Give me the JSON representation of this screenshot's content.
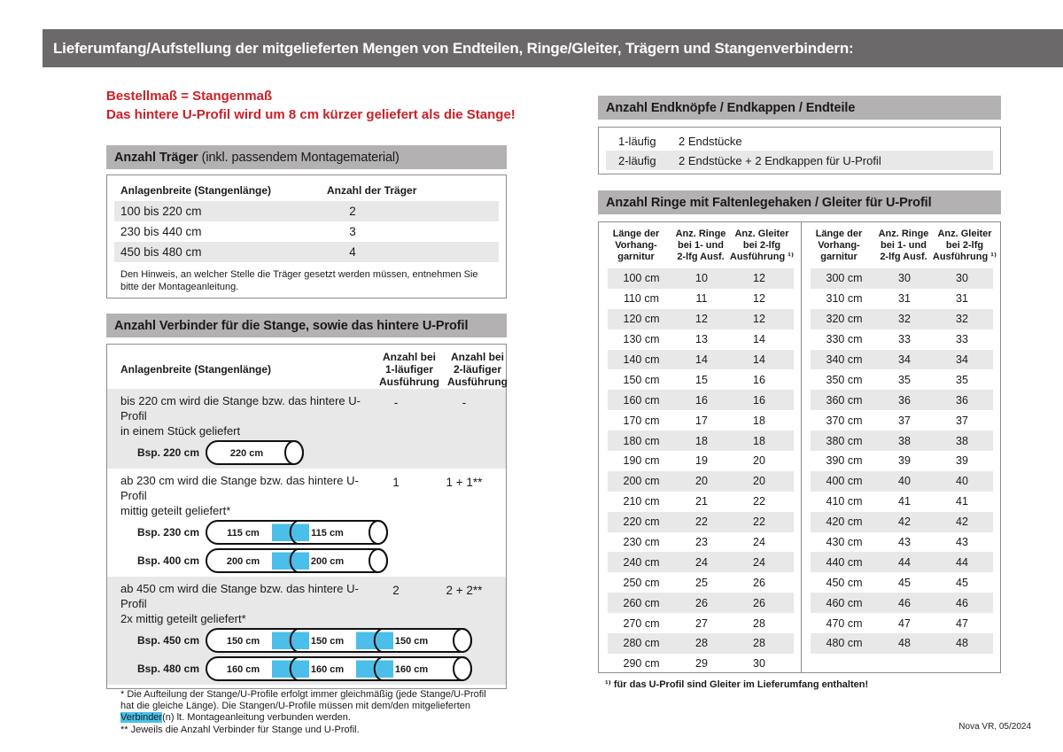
{
  "banner": {
    "text": "Lieferumfang/Aufstellung der mitgelieferten Mengen von Endteilen, Ringe/Gleiter, Trägern und Stangenverbindern:"
  },
  "footer": {
    "text": "Nova VR, 05/2024"
  },
  "colors": {
    "banner_bg": "#6b696a",
    "section_header_bg": "#b3b1b2",
    "row_shade": "#e9e8e8",
    "accent_red": "#cc2027",
    "accent_blue": "#4bbfe9",
    "border": "#8c8c8c"
  },
  "left": {
    "notice_line1": "Bestellmaß = Stangenmaß",
    "notice_line2": "Das hintere U-Profil wird um 8 cm kürzer geliefert als die Stange!",
    "traeger": {
      "title_bold": "Anzahl Träger",
      "title_rest": "(inkl. passendem Montagematerial)",
      "col1": "Anlagenbreite (Stangenlänge)",
      "col2": "Anzahl der Träger",
      "rows": [
        [
          "100 bis 220 cm",
          "2"
        ],
        [
          "230 bis 440 cm",
          "3"
        ],
        [
          "450 bis 480 cm",
          "4"
        ]
      ],
      "note": "Den Hinweis, an welcher Stelle die Träger gesetzt werden müssen, entnehmen Sie bitte der Montageanleitung."
    },
    "verbinder": {
      "title": "Anzahl Verbinder für die Stange, sowie das hintere U-Profil",
      "col1": "Anlagenbreite (Stangenlänge)",
      "col2": "Anzahl bei\n1-läufiger\nAusführung",
      "col3": "Anzahl bei\n2-läufiger\nAusführung",
      "blocks": [
        {
          "text": "bis 220 cm wird die Stange bzw. das hintere U-Profil\nin einem Stück geliefert",
          "v1": "-",
          "v2": "-",
          "shaded": true,
          "rods": [
            {
              "label": "Bsp. 220 cm",
              "segments": [
                "220 cm"
              ]
            }
          ]
        },
        {
          "text": "ab 230 cm wird die Stange bzw. das hintere U-Profil\nmittig geteilt geliefert*",
          "v1": "1",
          "v2": "1 + 1**",
          "shaded": false,
          "rods": [
            {
              "label": "Bsp. 230 cm",
              "segments": [
                "115 cm",
                "115 cm"
              ]
            },
            {
              "label": "Bsp. 400 cm",
              "segments": [
                "200 cm",
                "200 cm"
              ]
            }
          ]
        },
        {
          "text": "ab 450 cm wird die Stange bzw. das hintere U-Profil\n2x mittig geteilt geliefert*",
          "v1": "2",
          "v2": "2 + 2**",
          "shaded": true,
          "rods": [
            {
              "label": "Bsp. 450 cm",
              "segments": [
                "150 cm",
                "150 cm",
                "150 cm"
              ]
            },
            {
              "label": "Bsp. 480 cm",
              "segments": [
                "160 cm",
                "160 cm",
                "160 cm"
              ]
            }
          ]
        }
      ],
      "footnote1_pre": "* Die Aufteilung der Stange/U-Profile erfolgt immer gleichmäßig (jede Stange/U-Profil hat die gleiche Länge). Die Stangen/U-Profile müssen mit dem/den mitgelieferten ",
      "footnote1_hl": "Verbinder",
      "footnote1_post": "(n) lt. Montageanleitung verbunden werden.",
      "footnote2": "** Jeweils die Anzahl Verbinder für Stange und U-Profil."
    }
  },
  "right": {
    "endteile": {
      "title": "Anzahl Endknöpfe / Endkappen / Endteile",
      "rows": [
        [
          "1-läufig",
          "2 Endstücke"
        ],
        [
          "2-läufig",
          "2 Endstücke + 2 Endkappen für U-Profil"
        ]
      ]
    },
    "ringe": {
      "title": "Anzahl Ringe mit Faltenlegehaken / Gleiter für U-Profil",
      "col_headers": [
        "Länge der\nVorhang-\ngarnitur",
        "Anz. Ringe\nbei 1- und\n2-lfg Ausf.",
        "Anz. Gleiter\nbei 2-lfg\nAusführung ¹⁾"
      ],
      "left_rows": [
        [
          "100 cm",
          "10",
          "12"
        ],
        [
          "110 cm",
          "11",
          "12"
        ],
        [
          "120 cm",
          "12",
          "12"
        ],
        [
          "130 cm",
          "13",
          "14"
        ],
        [
          "140 cm",
          "14",
          "14"
        ],
        [
          "150 cm",
          "15",
          "16"
        ],
        [
          "160 cm",
          "16",
          "16"
        ],
        [
          "170 cm",
          "17",
          "18"
        ],
        [
          "180 cm",
          "18",
          "18"
        ],
        [
          "190 cm",
          "19",
          "20"
        ],
        [
          "200 cm",
          "20",
          "20"
        ],
        [
          "210 cm",
          "21",
          "22"
        ],
        [
          "220 cm",
          "22",
          "22"
        ],
        [
          "230 cm",
          "23",
          "24"
        ],
        [
          "240 cm",
          "24",
          "24"
        ],
        [
          "250 cm",
          "25",
          "26"
        ],
        [
          "260 cm",
          "26",
          "26"
        ],
        [
          "270 cm",
          "27",
          "28"
        ],
        [
          "280 cm",
          "28",
          "28"
        ],
        [
          "290 cm",
          "29",
          "30"
        ]
      ],
      "right_rows": [
        [
          "300 cm",
          "30",
          "30"
        ],
        [
          "310 cm",
          "31",
          "31"
        ],
        [
          "320 cm",
          "32",
          "32"
        ],
        [
          "330 cm",
          "33",
          "33"
        ],
        [
          "340 cm",
          "34",
          "34"
        ],
        [
          "350 cm",
          "35",
          "35"
        ],
        [
          "360 cm",
          "36",
          "36"
        ],
        [
          "370 cm",
          "37",
          "37"
        ],
        [
          "380 cm",
          "38",
          "38"
        ],
        [
          "390 cm",
          "39",
          "39"
        ],
        [
          "400 cm",
          "40",
          "40"
        ],
        [
          "410 cm",
          "41",
          "41"
        ],
        [
          "420 cm",
          "42",
          "42"
        ],
        [
          "430 cm",
          "43",
          "43"
        ],
        [
          "440 cm",
          "44",
          "44"
        ],
        [
          "450 cm",
          "45",
          "45"
        ],
        [
          "460 cm",
          "46",
          "46"
        ],
        [
          "470 cm",
          "47",
          "47"
        ],
        [
          "480 cm",
          "48",
          "48"
        ]
      ],
      "footnote": "¹⁾ für das U-Profil sind Gleiter im Lieferumfang enthalten!"
    }
  }
}
